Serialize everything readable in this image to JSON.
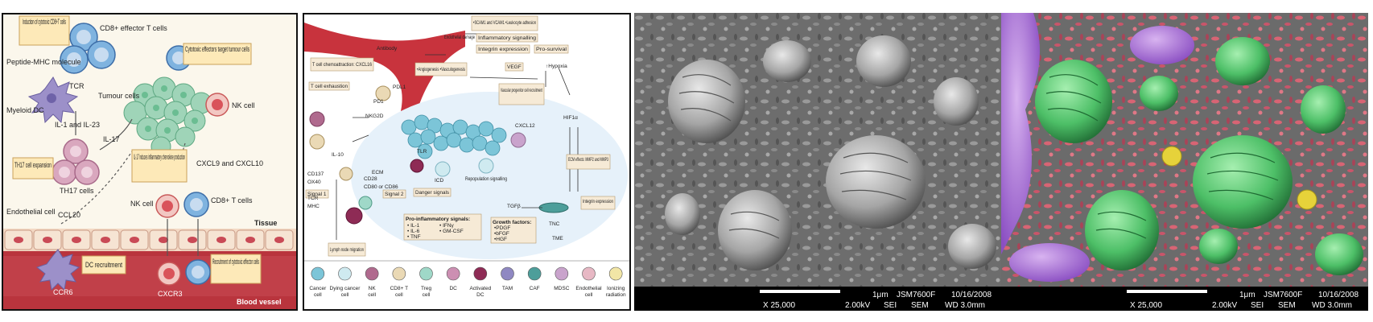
{
  "panel_a": {
    "box_induction": "Induction of cytotoxic CD8+T cells",
    "cd8_effector": "CD8+ effector T cells",
    "peptide_mhc": "Peptide-MHC molecule",
    "tcr": "TCR",
    "myeloid_dc": "Myeloid DC",
    "il1_il23": "IL-1 and IL-23",
    "tumour_cells": "Tumour cells",
    "box_cytotoxic": "Cytotoxic effectors target tumour cells",
    "nk_cell": "NK cell",
    "il17": "IL-17",
    "box_th17": "TH17 cell expansion",
    "th17_cells": "TH17 cells",
    "box_il17_induces": "IL-17 induces inflammatory chemokine production",
    "cxcl9": "CXCL9 and CXCL10",
    "endothelial_cell": "Endothelial cell",
    "ccl20": "CCL20",
    "nk_cell_2": "NK cell",
    "cd8_t_cells": "CD8+ T cells",
    "tissue": "Tissue",
    "box_dc_recruitment": "DC recruitment",
    "ccr6": "CCR6",
    "cxcr3": "CXCR3",
    "box_recruitment": "Recruitment of cytotoxic effector cells",
    "blood_vessel": "Blood vessel"
  },
  "panel_b": {
    "box_scam": "•SCAM1 and VCAM1 •Leukocyte adhesion",
    "endothelial_damage": "Endothelial damage",
    "box_inflam": "Inflammatory signalling",
    "box_integrin": "Integrin expression",
    "pro_survival": "Pro-survival",
    "antibody": "Antibody",
    "t_cell_chemo": "T cell chemoattraction: CXCL16",
    "box_angio": "•Angiogenesis •Vasculogenesis",
    "vegf": "VEGF",
    "hypoxia": "↑Hypoxia",
    "t_cell_exhaustion": "T cell exhaustion",
    "pdl1": "PDL1",
    "pd1": "PD1",
    "nkg2d": "NKG2D",
    "vascular_prog": "Vascular progenitor cell recruitment",
    "hif1a": "HIF1α",
    "cxcl12": "CXCL12",
    "il10": "IL-10",
    "ecm": "ECM",
    "tlr": "TLR",
    "icd": "ICD",
    "repopulation": "Repopulation signalling",
    "ecm_effects": "ECM effects: MMP2 and MMP3",
    "cd137": "CD137",
    "ox40": "OX40",
    "tcr": "TCR",
    "mhc": "MHC",
    "cd28": "CD28",
    "cd80": "CD80 or CD86",
    "signal1": "Signal 1",
    "signal2": "Signal 2",
    "danger_signals": "Danger signals",
    "tgfb": "TGFβ",
    "integrin_expr": "Integrin expression",
    "tnc": "TNC",
    "lymph_node": "Lymph node migration",
    "proinflam_title": "Pro-inflammatory signals:",
    "proinflam_items": [
      "• IL-1",
      "• IL-6",
      "• TNF",
      "• IFNγ",
      "• GM-CSF"
    ],
    "growth_title": "Growth factors:",
    "growth_items": [
      "•PDGF",
      "•bFGF",
      "•HGF"
    ],
    "tme": "TME",
    "legend": [
      {
        "label": "Cancer cell",
        "color": "#7cc5d8"
      },
      {
        "label": "Dying cancer cell",
        "color": "#cfeaf0"
      },
      {
        "label": "NK cell",
        "color": "#b06a8e"
      },
      {
        "label": "CD8+ T cell",
        "color": "#ead9b5"
      },
      {
        "label": "Treg cell",
        "color": "#9fd8c8"
      },
      {
        "label": "DC",
        "color": "#cc8fb2"
      },
      {
        "label": "Activated DC",
        "color": "#8e2b55"
      },
      {
        "label": "TAM",
        "color": "#8f88c2"
      },
      {
        "label": "CAF",
        "color": "#4d9e9a"
      },
      {
        "label": "MDSC",
        "color": "#c9a3cc"
      },
      {
        "label": "Endothelial cell",
        "color": "#e7b8c4"
      },
      {
        "label": "Ionizing radiation",
        "color": "#f2e6a6"
      }
    ]
  },
  "panel_c": {
    "scale": "1μm",
    "instrument": "JSM7600F",
    "date": "10/16/2008",
    "magnification": "X 25,000",
    "voltage": "2.00kV",
    "mode": "SEI",
    "detector": "SEM",
    "wd": "WD 3.0mm"
  },
  "panel_d": {
    "scale": "1μm",
    "instrument": "JSM7600F",
    "date": "10/16/2008",
    "magnification": "X 25,000",
    "voltage": "2.00kV",
    "mode": "SEI",
    "detector": "SEM",
    "wd": "WD 3.0mm"
  }
}
